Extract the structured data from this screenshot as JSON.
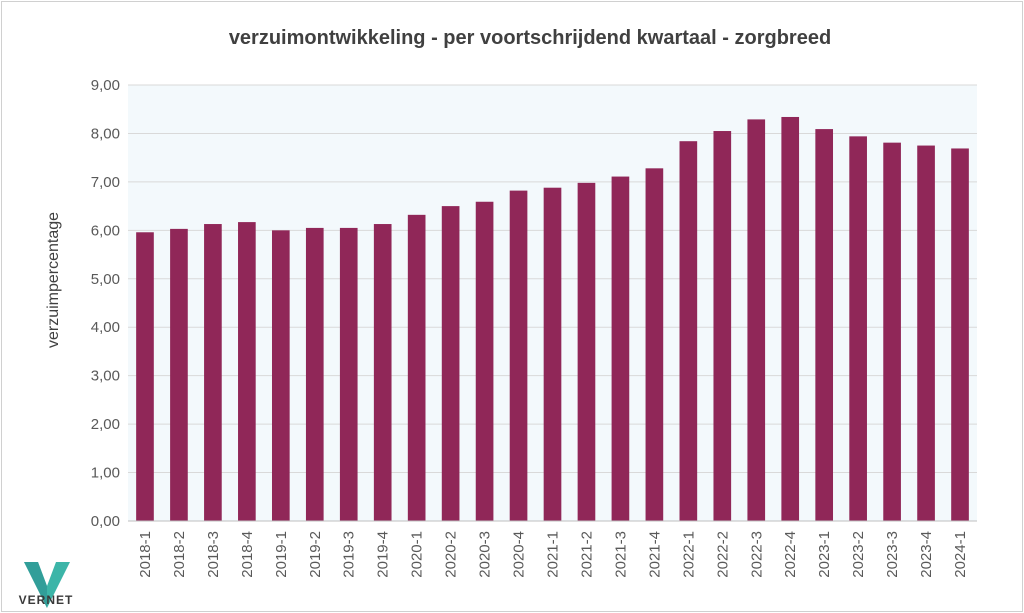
{
  "chart_data": {
    "type": "bar",
    "title": "verzuimontwikkeling - per voortschrijdend kwartaal - zorgbreed",
    "xlabel": "",
    "ylabel": "verzuimpercentage",
    "ylim": [
      0,
      9
    ],
    "yticks": [
      "0,00",
      "1,00",
      "2,00",
      "3,00",
      "4,00",
      "5,00",
      "6,00",
      "7,00",
      "8,00",
      "9,00"
    ],
    "categories": [
      "2018-1",
      "2018-2",
      "2018-3",
      "2018-4",
      "2019-1",
      "2019-2",
      "2019-3",
      "2019-4",
      "2020-1",
      "2020-2",
      "2020-3",
      "2020-4",
      "2021-1",
      "2021-2",
      "2021-3",
      "2021-4",
      "2022-1",
      "2022-2",
      "2022-3",
      "2022-4",
      "2023-1",
      "2023-2",
      "2023-3",
      "2023-4",
      "2024-1"
    ],
    "values": [
      5.96,
      6.03,
      6.13,
      6.17,
      6.0,
      6.05,
      6.05,
      6.13,
      6.32,
      6.5,
      6.59,
      6.82,
      6.88,
      6.98,
      7.11,
      7.28,
      7.84,
      8.05,
      8.29,
      8.34,
      8.09,
      7.94,
      7.81,
      7.75,
      7.69
    ],
    "grid": true,
    "legend": "none",
    "colors": {
      "bar": "#902758",
      "plot_background": "#f3f9fc",
      "gridline": "#d9d9d9"
    }
  },
  "logo": {
    "icon": "vernet-v-logo-icon",
    "text": "VERNET"
  }
}
